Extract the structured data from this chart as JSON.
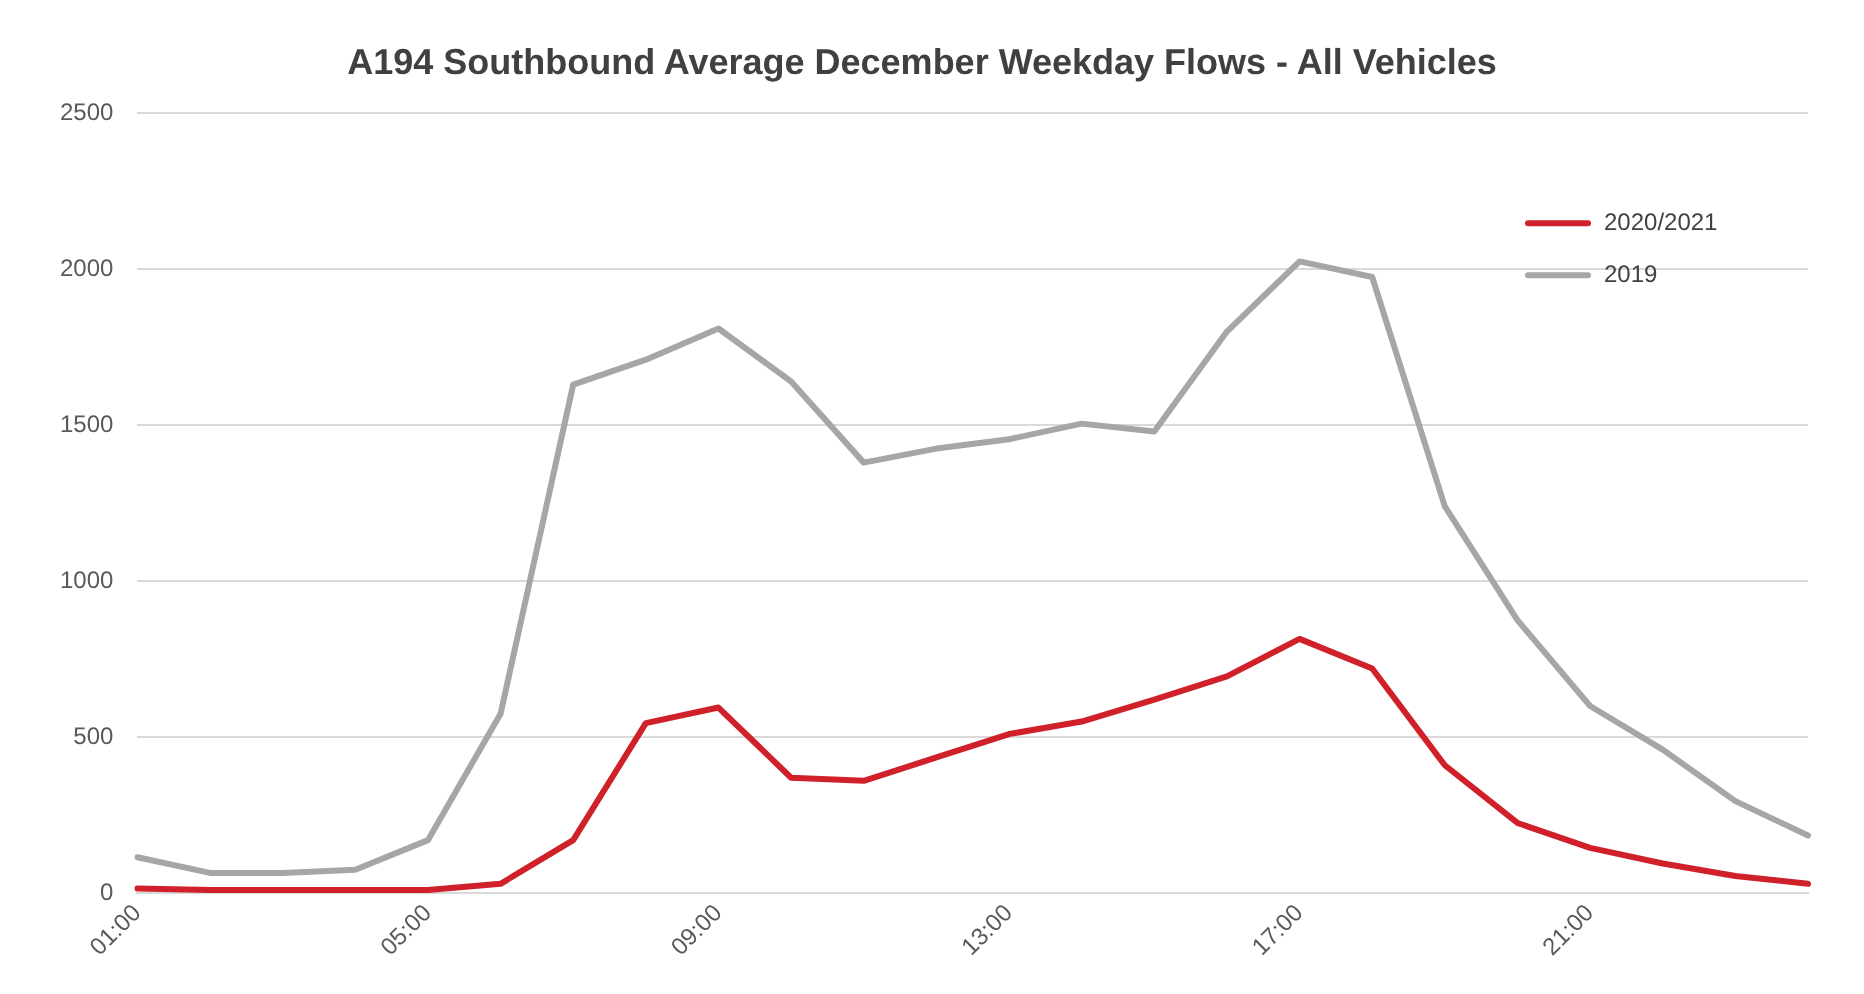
{
  "chart_data": {
    "type": "line",
    "title": "A194 Southbound Average December Weekday Flows - All Vehicles",
    "categories": [
      "01:00",
      null,
      null,
      null,
      "05:00",
      null,
      null,
      null,
      "09:00",
      null,
      null,
      null,
      "13:00",
      null,
      null,
      null,
      "17:00",
      null,
      null,
      null,
      "21:00",
      null,
      null,
      null
    ],
    "series": [
      {
        "name": "2020/2021",
        "color": "#d0202a",
        "values": [
          15,
          10,
          10,
          10,
          10,
          30,
          170,
          545,
          595,
          370,
          360,
          435,
          510,
          550,
          620,
          695,
          815,
          720,
          410,
          225,
          145,
          95,
          55,
          30
        ]
      },
      {
        "name": "2019",
        "color": "#a6a6a6",
        "values": [
          115,
          65,
          65,
          75,
          170,
          575,
          1630,
          1710,
          1810,
          1640,
          1380,
          1425,
          1455,
          1505,
          1480,
          1800,
          2025,
          1975,
          1240,
          875,
          600,
          460,
          295,
          185
        ]
      }
    ],
    "ylim": [
      0,
      2500
    ],
    "yticks": [
      0,
      500,
      1000,
      1500,
      2000,
      2500
    ],
    "grid": "y",
    "legend": "top right",
    "marker": "none",
    "line_style": "solid"
  }
}
